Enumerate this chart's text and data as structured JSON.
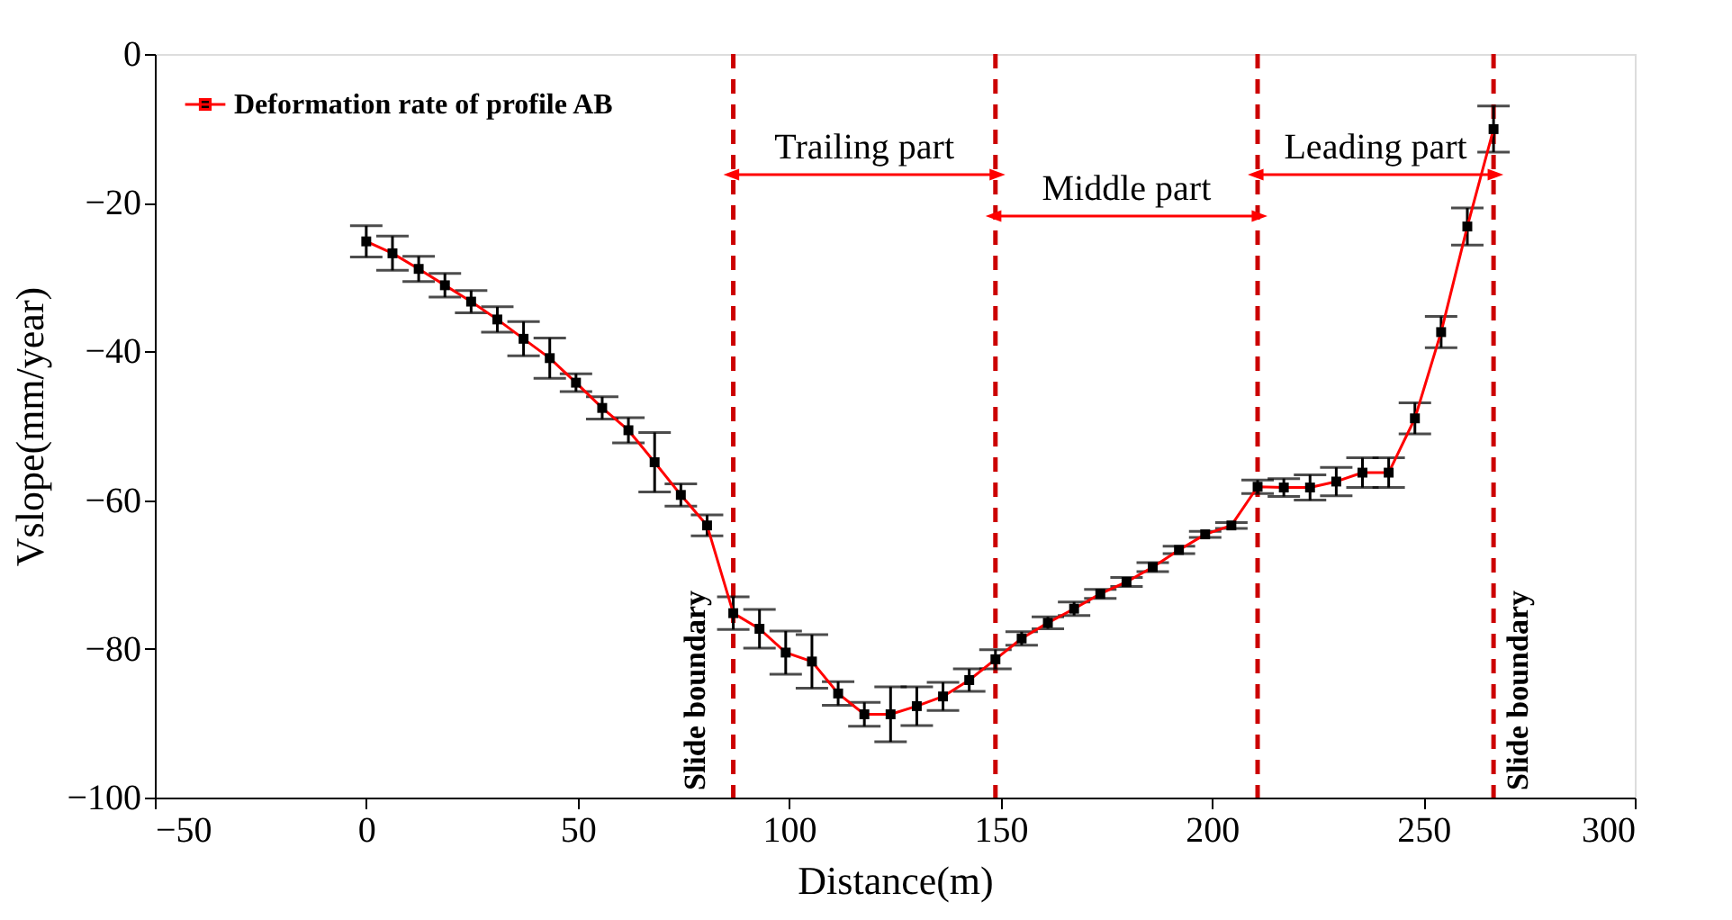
{
  "chart_data": {
    "type": "line",
    "xlabel": "Distance(m)",
    "ylabel": "Vslope(mm/year)",
    "x": [
      0,
      6.2,
      12.4,
      18.6,
      24.8,
      31,
      37.2,
      43.4,
      49.6,
      55.8,
      62,
      68.2,
      74.4,
      80.6,
      86.8,
      93,
      99.2,
      105.4,
      111.6,
      117.8,
      124,
      130.2,
      136.4,
      142.6,
      148.8,
      155,
      161.2,
      167.4,
      173.6,
      179.8,
      186,
      192.2,
      198.4,
      204.6,
      210.8,
      217,
      223.2,
      229.4,
      235.6,
      241.8,
      248,
      254.2,
      260.4,
      266.6
    ],
    "series": [
      {
        "name": "Deformation rate of profile AB",
        "color": "#ff0000",
        "values": [
          -25.2,
          -26.8,
          -28.9,
          -31.1,
          -33.3,
          -35.7,
          -38.3,
          -40.9,
          -44.2,
          -47.6,
          -50.6,
          -54.9,
          -59.3,
          -63.4,
          -75.2,
          -77.3,
          -80.5,
          -81.7,
          -86.0,
          -88.8,
          -88.8,
          -87.7,
          -86.4,
          -84.2,
          -81.4,
          -78.6,
          -76.5,
          -74.6,
          -72.6,
          -71.0,
          -69.0,
          -66.7,
          -64.6,
          -63.4,
          -58.2,
          -58.3,
          -58.3,
          -57.5,
          -56.3,
          -56.3,
          -49.0,
          -37.4,
          -23.2,
          -10.1
        ],
        "errors": [
          2.1,
          2.3,
          1.7,
          1.6,
          1.5,
          1.7,
          2.3,
          2.7,
          1.2,
          1.5,
          1.7,
          4.0,
          1.5,
          1.4,
          2.2,
          2.6,
          2.9,
          3.6,
          1.6,
          1.6,
          3.7,
          2.6,
          1.9,
          1.5,
          1.3,
          0.9,
          0.8,
          0.9,
          0.6,
          0.6,
          0.6,
          0.5,
          0.4,
          0.4,
          0.9,
          1.2,
          1.7,
          1.9,
          2.0,
          2.0,
          2.1,
          2.1,
          2.5,
          3.1
        ]
      }
    ],
    "xlim": [
      -50,
      300
    ],
    "xticks": [
      -50,
      0,
      50,
      100,
      150,
      200,
      250,
      300
    ],
    "ylim": [
      -100,
      0
    ],
    "yticks": [
      -100,
      -80,
      -60,
      -40,
      -20,
      0
    ],
    "ref_lines": [
      {
        "axis": "x",
        "value": 86.8,
        "label": "Slide boundary",
        "color": "#cc0000",
        "line_style": "dashed"
      },
      {
        "axis": "x",
        "value": 148.8,
        "color": "#cc0000",
        "line_style": "dashed"
      },
      {
        "axis": "x",
        "value": 210.8,
        "color": "#cc0000",
        "line_style": "dashed"
      },
      {
        "axis": "x",
        "value": 266.6,
        "label": "Slide boundary",
        "color": "#cc0000",
        "line_style": "dashed"
      }
    ],
    "annotations": [
      "Trailing part",
      "Middle part",
      "Leading part"
    ],
    "marker": "square",
    "line_style": "solid",
    "grid": false,
    "legend": "top left"
  }
}
